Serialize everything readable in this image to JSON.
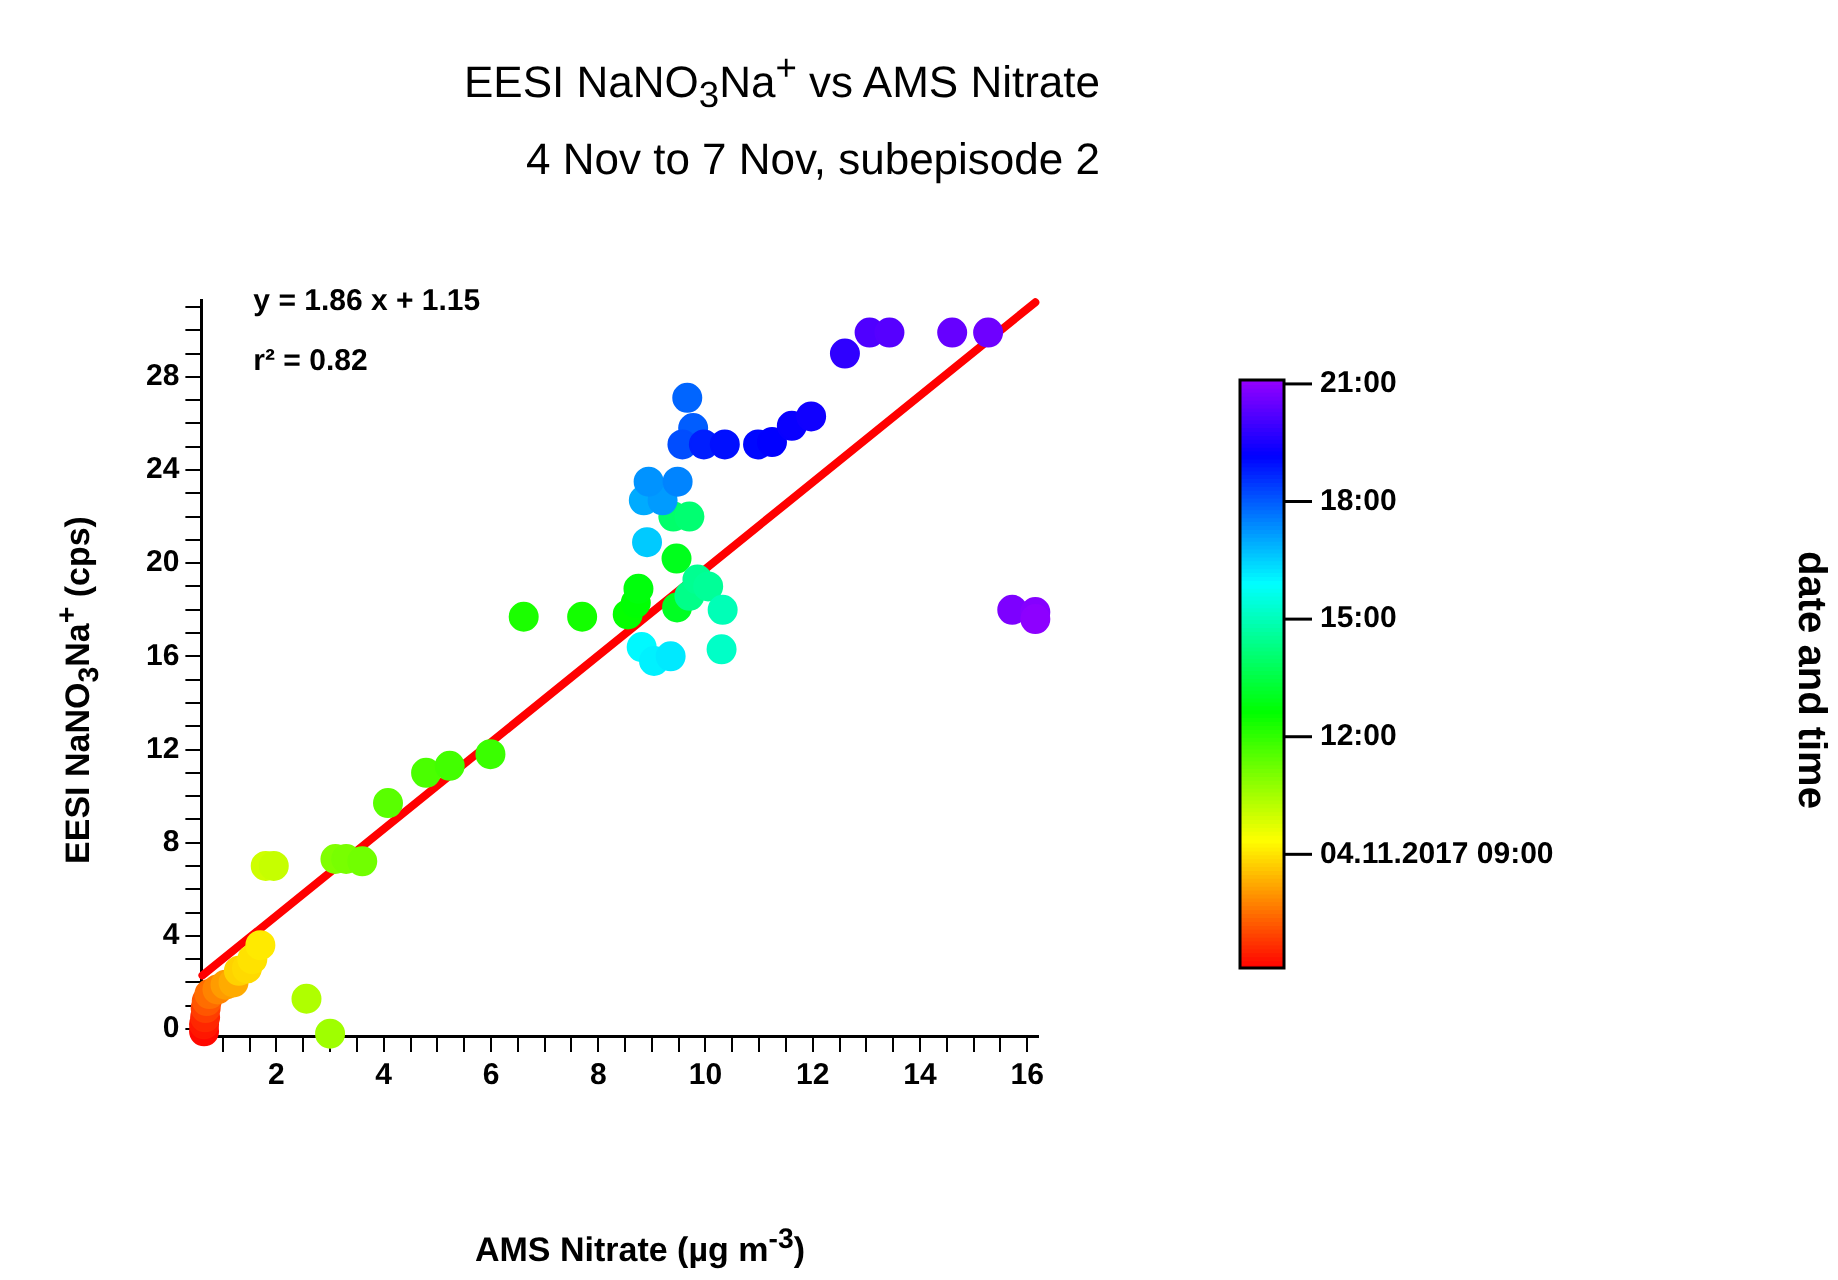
{
  "chart_data": {
    "type": "scatter",
    "title": "EESI NaNO$_{3}$Na$^{+}$ vs AMS Nitrate",
    "subtitle": "4 Nov to 7 Nov, subepisode 2",
    "xlabel": "AMS Nitrate (µg m$^{-3}$)",
    "ylabel": "EESI NaNO$_{3}$Na$^{+}$ (cps)",
    "clabel": "date and time",
    "annotations": [
      "y = 1.86 x + 1.15",
      "r² = 0.82"
    ],
    "xlim": [
      0.6,
      16.2
    ],
    "ylim": [
      -0.3,
      31.3
    ],
    "xticks": [
      {
        "value": 1,
        "label": null
      },
      {
        "value": 1.5,
        "label": null
      },
      2,
      {
        "value": 2.5,
        "label": null
      },
      {
        "value": 3,
        "label": null
      },
      {
        "value": 3.5,
        "label": null
      },
      4,
      {
        "value": 4.5,
        "label": null
      },
      {
        "value": 5,
        "label": null
      },
      {
        "value": 5.5,
        "label": null
      },
      6,
      {
        "value": 6.5,
        "label": null
      },
      {
        "value": 7,
        "label": null
      },
      {
        "value": 7.5,
        "label": null
      },
      8,
      {
        "value": 8.5,
        "label": null
      },
      {
        "value": 9,
        "label": null
      },
      {
        "value": 9.5,
        "label": null
      },
      10,
      {
        "value": 10.5,
        "label": null
      },
      {
        "value": 11,
        "label": null
      },
      {
        "value": 11.5,
        "label": null
      },
      12,
      {
        "value": 12.5,
        "label": null
      },
      {
        "value": 13,
        "label": null
      },
      {
        "value": 13.5,
        "label": null
      },
      14,
      {
        "value": 14.5,
        "label": null
      },
      {
        "value": 15,
        "label": null
      },
      {
        "value": 15.5,
        "label": null
      },
      16
    ],
    "yticks": [
      0,
      {
        "value": 1,
        "label": null
      },
      {
        "value": 2,
        "label": null
      },
      {
        "value": 3,
        "label": null
      },
      4,
      {
        "value": 5,
        "label": null
      },
      {
        "value": 6,
        "label": null
      },
      {
        "value": 7,
        "label": null
      },
      8,
      {
        "value": 9,
        "label": null
      },
      {
        "value": 10,
        "label": null
      },
      {
        "value": 11,
        "label": null
      },
      12,
      {
        "value": 13,
        "label": null
      },
      {
        "value": 14,
        "label": null
      },
      {
        "value": 15,
        "label": null
      },
      16,
      {
        "value": 17,
        "label": null
      },
      {
        "value": 18,
        "label": null
      },
      {
        "value": 19,
        "label": null
      },
      20,
      {
        "value": 21,
        "label": null
      },
      {
        "value": 22,
        "label": null
      },
      {
        "value": 23,
        "label": null
      },
      24,
      {
        "value": 25,
        "label": null
      },
      {
        "value": 26,
        "label": null
      },
      {
        "value": 27,
        "label": null
      },
      28,
      {
        "value": 29,
        "label": null
      },
      {
        "value": 30,
        "label": null
      },
      {
        "value": 31,
        "label": null
      }
    ],
    "clim": [
      6.1,
      21.1
    ],
    "cticks": [
      {
        "value": 9,
        "label": "04.11.2017 09:00"
      },
      {
        "value": 12,
        "label": "12:00"
      },
      {
        "value": 15,
        "label": "15:00"
      },
      {
        "value": 18,
        "label": "18:00"
      },
      {
        "value": 21,
        "label": "21:00"
      }
    ],
    "grid": false,
    "legend": false,
    "series": [
      {
        "marker": "circle",
        "colors": [
          "#ff0800",
          "#ff1700",
          "#ff2700",
          "#ff3e00",
          "#ff5600",
          "#ff6d00",
          "#ff8400",
          "#ff9c00",
          "#ffab00",
          "#ffd200",
          "#ffda00",
          "#ffe200",
          "#ffea00",
          "#ceff00",
          "#c6ff00",
          "#afff00",
          "#9fff00",
          "#80ff00",
          "#78ff00",
          "#71ff00",
          "#59ff00",
          "#4aff00",
          "#42ff00",
          "#3aff00",
          "#1bff00",
          "#13ff00",
          "#04ff00",
          "#00ff04",
          "#00ff0c",
          "#00ff1c",
          "#00ff23",
          "#00ff6a",
          "#00ff71",
          "#00ff89",
          "#00ff91",
          "#00ff98",
          "#00ffb7",
          "#00ffc7",
          "#00f9ff",
          "#00f1ff",
          "#00e9ff",
          "#00caff",
          "#00abff",
          "#009bff",
          "#0093ff",
          "#0084ff",
          "#0065ff",
          "#005dff",
          "#004dff",
          "#001eff",
          "#000fff",
          "#0007ff",
          "#0100ff",
          "#0900ff",
          "#1000ff",
          "#2f00ff",
          "#4f00ff",
          "#5600ff",
          "#6600ff",
          "#6e00ff",
          "#7d00ff",
          "#8500ff",
          "#8d00ff"
        ],
        "x": [
          0.65,
          0.65,
          0.67,
          0.68,
          0.7,
          0.75,
          0.9,
          1.05,
          1.2,
          1.3,
          1.45,
          1.55,
          1.7,
          1.8,
          1.95,
          2.56,
          3.0,
          3.1,
          3.3,
          3.6,
          4.08,
          4.79,
          5.23,
          5.99,
          6.61,
          7.7,
          8.55,
          8.7,
          8.75,
          9.46,
          9.47,
          9.4,
          9.7,
          9.7,
          9.85,
          10.05,
          10.32,
          10.3,
          8.81,
          9.04,
          9.35,
          8.91,
          8.85,
          9.2,
          8.94,
          9.48,
          9.66,
          9.77,
          9.57,
          9.97,
          10.36,
          10.98,
          11.24,
          11.61,
          11.97,
          12.6,
          13.06,
          13.43,
          14.6,
          15.27,
          15.72,
          16.15,
          16.15
        ],
        "values": [
          -0.1,
          0.2,
          0.5,
          0.9,
          1.2,
          1.5,
          1.7,
          1.9,
          2.0,
          2.5,
          2.6,
          3.0,
          3.6,
          7.0,
          7.0,
          1.3,
          -0.2,
          7.3,
          7.3,
          7.2,
          9.7,
          11.0,
          11.3,
          11.8,
          17.7,
          17.7,
          17.8,
          18.3,
          18.9,
          20.2,
          18.1,
          22.0,
          22.0,
          18.6,
          19.3,
          19.0,
          18.0,
          16.3,
          16.4,
          15.8,
          16.0,
          20.9,
          22.7,
          22.7,
          23.5,
          23.5,
          27.1,
          25.8,
          25.1,
          25.1,
          25.1,
          25.1,
          25.2,
          25.9,
          26.3,
          29.0,
          29.9,
          29.9,
          29.9,
          29.9,
          18.0,
          17.9,
          17.6
        ],
        "cvalues": [
          6.2,
          6.4,
          6.6,
          6.9,
          7.2,
          7.5,
          7.8,
          8.1,
          8.3,
          8.8,
          8.9,
          9.0,
          9.1,
          10.0,
          10.1,
          10.4,
          10.6,
          11.0,
          11.1,
          11.2,
          11.5,
          11.7,
          11.8,
          11.9,
          12.3,
          12.4,
          12.6,
          12.7,
          12.8,
          13.0,
          13.1,
          14.0,
          14.1,
          14.4,
          14.5,
          14.6,
          15.0,
          15.2,
          16.0,
          16.1,
          16.2,
          16.6,
          17.0,
          17.2,
          17.3,
          17.5,
          17.9,
          18.0,
          18.2,
          18.8,
          19.0,
          19.1,
          19.2,
          19.3,
          19.4,
          19.8,
          20.2,
          20.3,
          20.5,
          20.6,
          20.8,
          20.9,
          21.0
        ]
      },
      {
        "type": "line",
        "color": "#ff0000",
        "line_style": "solid",
        "x": [
          0.62,
          16.15
        ],
        "values": [
          2.3,
          31.2
        ]
      }
    ]
  }
}
